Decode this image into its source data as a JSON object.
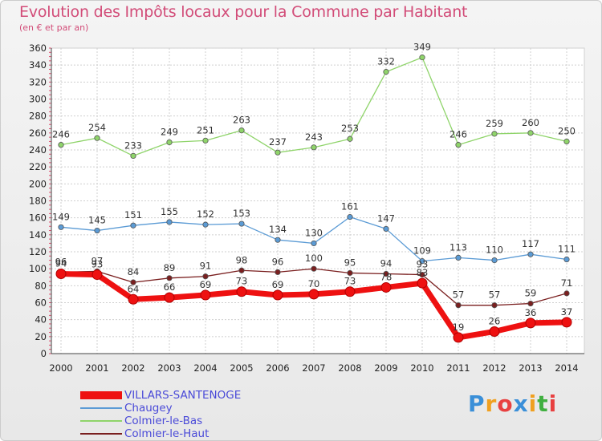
{
  "title": "Evolution des Impôts locaux pour la Commune par Habitant",
  "subtitle": "(en € et par an)",
  "chart_data": {
    "type": "line",
    "x": [
      "2000",
      "2001",
      "2002",
      "2003",
      "2004",
      "2005",
      "2006",
      "2007",
      "2008",
      "2009",
      "2010",
      "2011",
      "2012",
      "2013",
      "2014"
    ],
    "ylim": [
      0,
      360
    ],
    "yticks": [
      "0",
      "20",
      "40",
      "60",
      "80",
      "100",
      "120",
      "140",
      "160",
      "180",
      "200",
      "220",
      "240",
      "260",
      "280",
      "300",
      "320",
      "340",
      "360"
    ],
    "series": [
      {
        "name": "Colmier-le-Bas",
        "color": "#8fd46a",
        "values": [
          246,
          254,
          233,
          249,
          251,
          263,
          237,
          243,
          253,
          332,
          349,
          246,
          259,
          260,
          250
        ]
      },
      {
        "name": "Chaugey",
        "color": "#5b9bd5",
        "values": [
          149,
          145,
          151,
          155,
          152,
          153,
          134,
          130,
          161,
          147,
          109,
          113,
          110,
          117,
          111
        ]
      },
      {
        "name": "Colmier-le-Haut",
        "color": "#7a1f1f",
        "values": [
          96,
          97,
          84,
          89,
          91,
          98,
          96,
          100,
          95,
          94,
          93,
          57,
          57,
          59,
          71
        ]
      },
      {
        "name": "VILLARS-SANTENOGE",
        "color": "#ee1111",
        "values": [
          94,
          93,
          64,
          66,
          69,
          73,
          69,
          70,
          73,
          78,
          83,
          19,
          26,
          36,
          37
        ]
      }
    ],
    "legend": [
      {
        "name": "VILLARS-SANTENOGE",
        "color": "#ee1111"
      },
      {
        "name": "Chaugey",
        "color": "#5b9bd5"
      },
      {
        "name": "Colmier-le-Bas",
        "color": "#8fd46a"
      },
      {
        "name": "Colmier-le-Haut",
        "color": "#7a1f1f"
      }
    ]
  },
  "logo": {
    "text": "Proxiti",
    "colors": [
      "#3a8fd8",
      "#f0a020",
      "#e84040",
      "#3a8fd8",
      "#f0a020",
      "#40b040",
      "#e84040"
    ]
  }
}
